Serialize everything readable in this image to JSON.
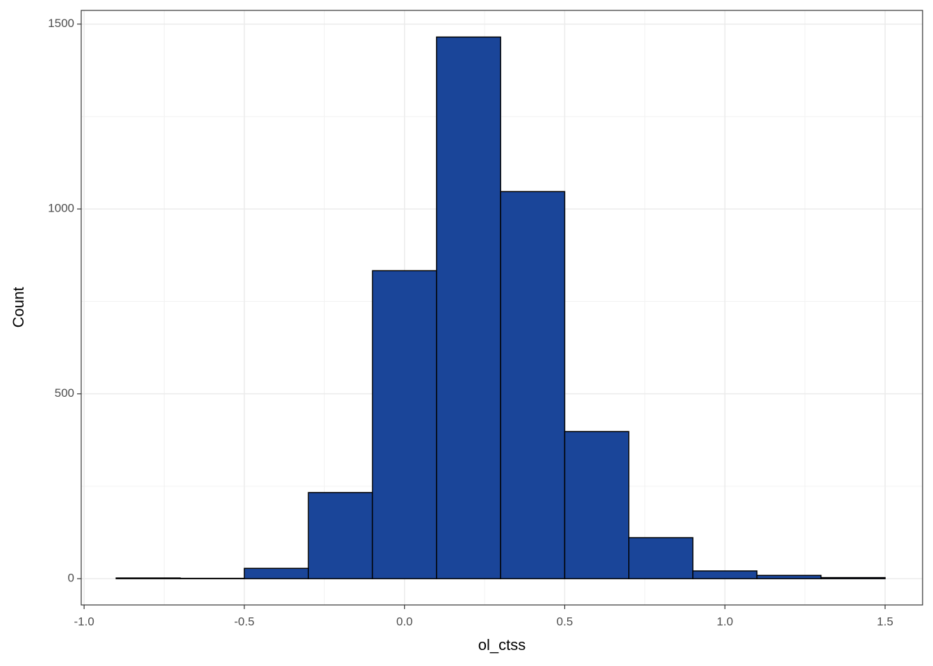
{
  "chart_data": {
    "type": "histogram",
    "x_label": "ol_ctss",
    "y_label": "Count",
    "bins": [
      -0.9,
      -0.7,
      -0.5,
      -0.3,
      -0.1,
      0.1,
      0.3,
      0.5,
      0.7,
      0.9,
      1.1,
      1.3,
      1.5
    ],
    "values": [
      2,
      1,
      28,
      233,
      833,
      1465,
      1047,
      398,
      111,
      21,
      9,
      3
    ],
    "color": "#1a4599",
    "edge_color": "#000000",
    "xlim": [
      -1.009,
      1.617
    ],
    "ylim": [
      -71,
      1537
    ],
    "xticks": [
      {
        "value": -1.0,
        "label": "-1.0"
      },
      {
        "value": -0.5,
        "label": "-0.5"
      },
      {
        "value": 0,
        "label": "0.0"
      },
      {
        "value": 0.5,
        "label": "0.5"
      },
      {
        "value": 1.0,
        "label": "1.0"
      },
      {
        "value": 1.5,
        "label": "1.5"
      }
    ],
    "yticks": [
      0,
      500,
      1000,
      1500
    ],
    "grid": true,
    "minor_grid": true
  }
}
